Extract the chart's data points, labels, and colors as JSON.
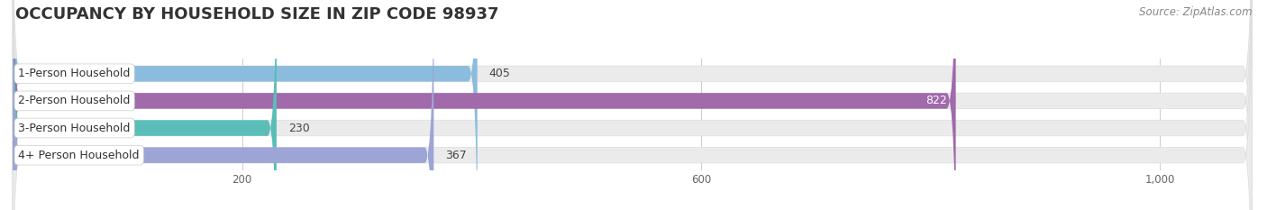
{
  "title": "OCCUPANCY BY HOUSEHOLD SIZE IN ZIP CODE 98937",
  "source": "Source: ZipAtlas.com",
  "categories": [
    "1-Person Household",
    "2-Person Household",
    "3-Person Household",
    "4+ Person Household"
  ],
  "values": [
    405,
    822,
    230,
    367
  ],
  "bar_colors": [
    "#8bbcde",
    "#a06aab",
    "#5bbdb8",
    "#9da5d6"
  ],
  "label_colors": [
    "#444444",
    "#444444",
    "#444444",
    "#444444"
  ],
  "value_inside": [
    false,
    true,
    false,
    false
  ],
  "xlim": [
    0,
    1080
  ],
  "xticks": [
    200,
    600,
    1000
  ],
  "xtick_labels": [
    "200",
    "600",
    "1,000"
  ],
  "background_color": "#ffffff",
  "bar_bg_color": "#ebebeb",
  "title_fontsize": 13,
  "source_fontsize": 8.5,
  "label_fontsize": 9,
  "value_fontsize": 9,
  "bar_height": 0.58,
  "pill_rounding": 8
}
